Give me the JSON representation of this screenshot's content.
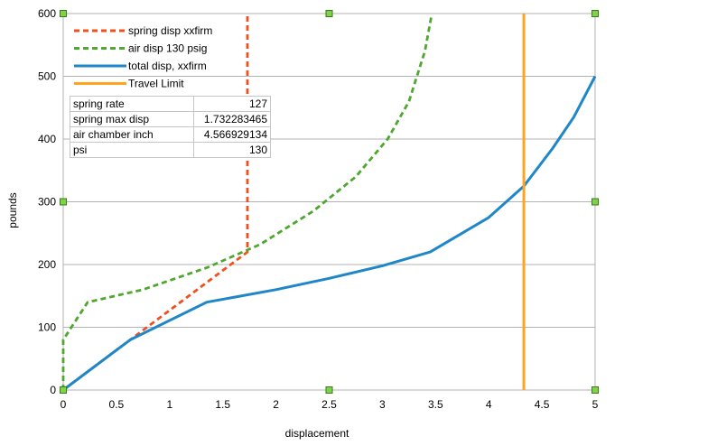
{
  "chart_data": {
    "type": "line",
    "title": "",
    "xlabel": "displacement",
    "ylabel": "pounds",
    "xlim": [
      0,
      5
    ],
    "ylim": [
      0,
      600
    ],
    "x_ticks": [
      "0",
      "0.5",
      "1",
      "1.5",
      "2",
      "2.5",
      "3",
      "3.5",
      "4",
      "4.5",
      "5"
    ],
    "y_ticks": [
      "0",
      "100",
      "200",
      "300",
      "400",
      "500",
      "600"
    ],
    "grid": "horizontal",
    "legend_position": "top-left",
    "series": [
      {
        "name": "spring disp xxfirm",
        "color": "#f0501e",
        "style": "dashed",
        "points": [
          [
            0,
            0
          ],
          [
            0.63,
            80
          ],
          [
            1.732,
            220
          ],
          [
            1.732,
            600
          ]
        ]
      },
      {
        "name": "air disp 130 psig",
        "color": "#4ea72e",
        "style": "dashed",
        "points": [
          [
            0,
            0
          ],
          [
            0,
            80
          ],
          [
            0.23,
            140
          ],
          [
            0.75,
            160
          ],
          [
            1.35,
            195
          ],
          [
            1.85,
            232
          ],
          [
            2.35,
            285
          ],
          [
            2.75,
            340
          ],
          [
            3.05,
            400
          ],
          [
            3.25,
            460
          ],
          [
            3.4,
            540
          ],
          [
            3.46,
            595
          ]
        ]
      },
      {
        "name": "total disp, xxfirm",
        "color": "#1f87c8",
        "style": "solid",
        "points": [
          [
            0,
            0
          ],
          [
            0.63,
            80
          ],
          [
            1.35,
            140
          ],
          [
            2.0,
            160
          ],
          [
            2.5,
            178
          ],
          [
            3.0,
            198
          ],
          [
            3.45,
            220
          ],
          [
            3.7,
            245
          ],
          [
            4.0,
            275
          ],
          [
            4.33,
            325
          ],
          [
            4.6,
            385
          ],
          [
            4.8,
            435
          ],
          [
            5.0,
            500
          ]
        ]
      },
      {
        "name": "Travel Limit",
        "color": "#ffa321",
        "style": "solid",
        "points": [
          [
            4.33,
            0
          ],
          [
            4.33,
            600
          ]
        ]
      }
    ],
    "info_table": [
      {
        "label": "spring rate",
        "value": "127"
      },
      {
        "label": "spring max disp",
        "value": "1.732283465"
      },
      {
        "label": "air chamber inch",
        "value": "4.566929134"
      },
      {
        "label": "psi",
        "value": "130"
      }
    ]
  }
}
